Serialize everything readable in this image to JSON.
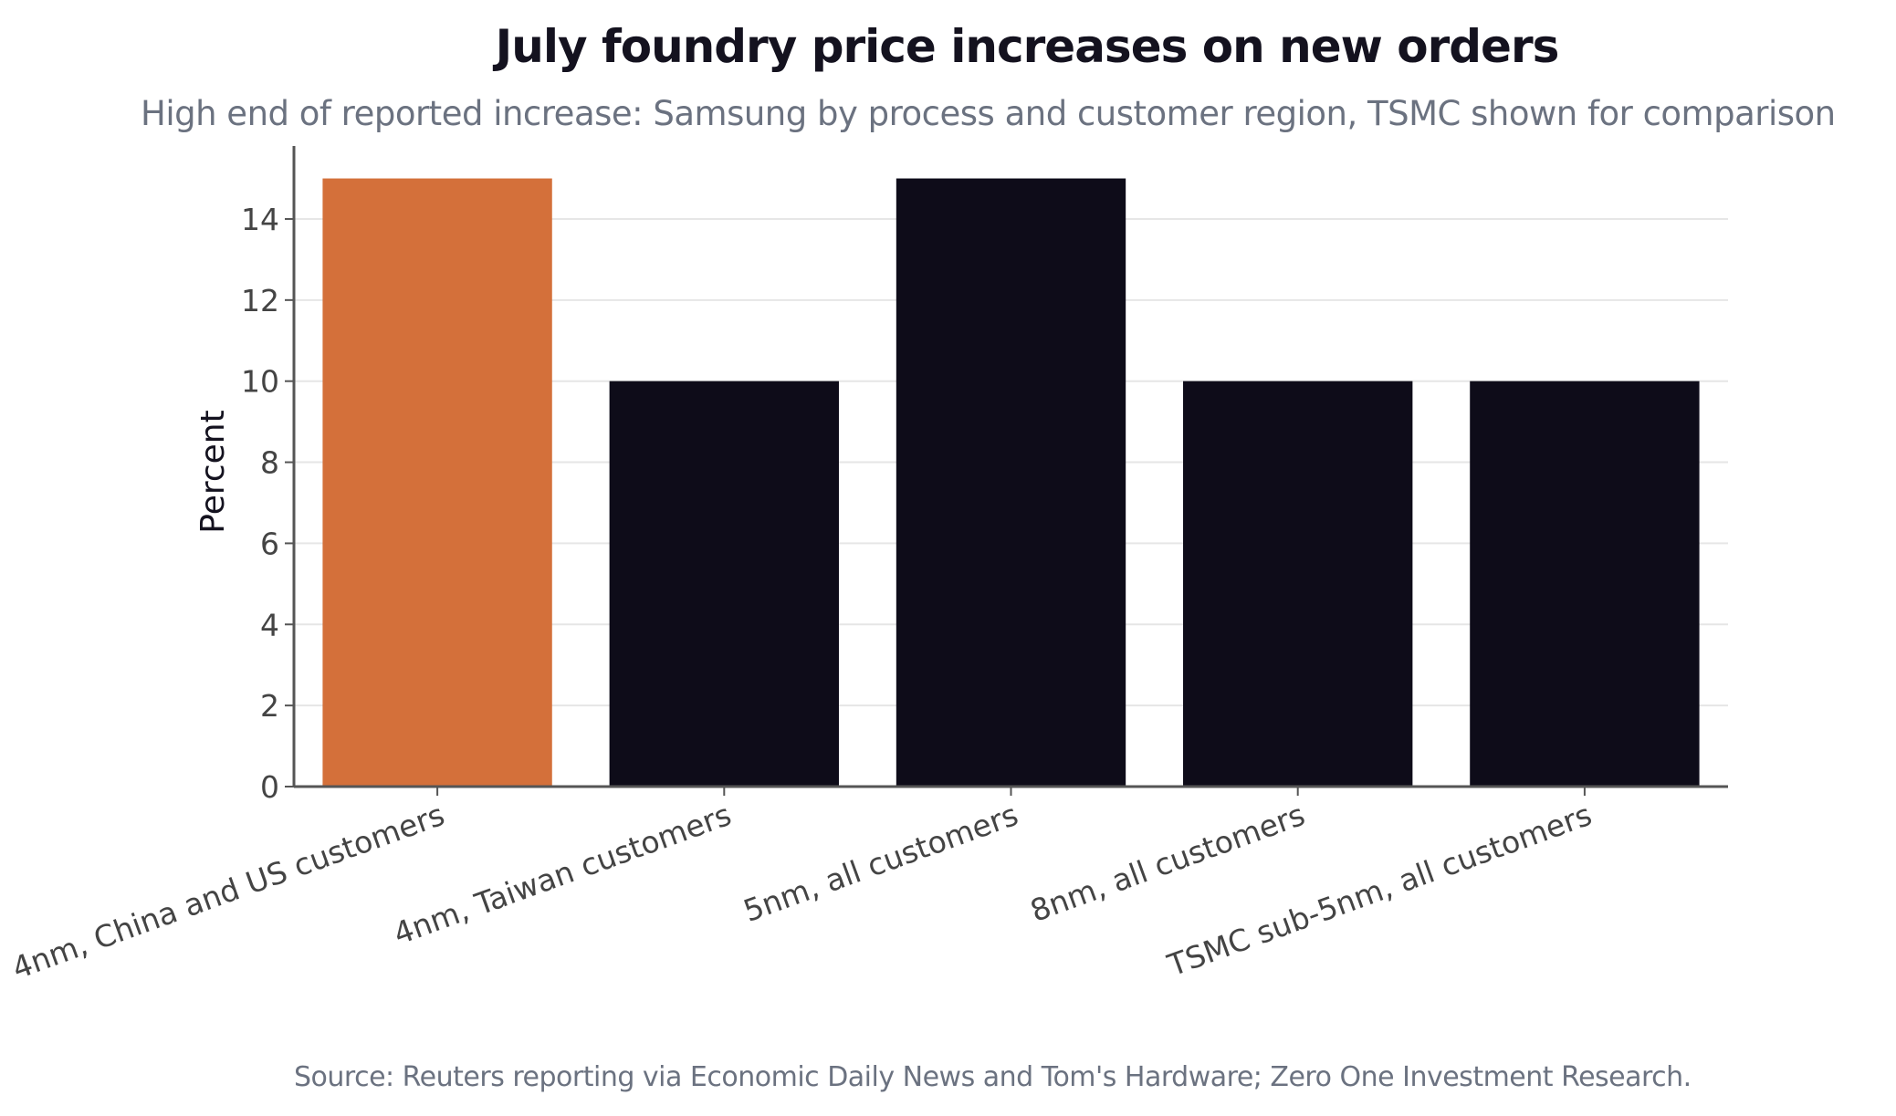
{
  "chart_data": {
    "type": "bar",
    "title": "July foundry price increases on new orders",
    "subtitle": "High end of reported increase: Samsung by process and customer region, TSMC shown for comparison",
    "xlabel": "",
    "ylabel": "Percent",
    "categories": [
      "4nm, China and US customers",
      "4nm, Taiwan customers",
      "5nm, all customers",
      "8nm, all customers",
      "TSMC sub-5nm, all customers"
    ],
    "values": [
      15,
      10,
      15,
      10,
      10
    ],
    "bar_colors": [
      "#d4703a",
      "#0e0c19",
      "#0e0c19",
      "#0e0c19",
      "#0e0c19"
    ],
    "ylim": [
      0,
      15.8
    ],
    "yticks": [
      0,
      2,
      4,
      6,
      8,
      10,
      12,
      14
    ],
    "grid": true,
    "legend": "none",
    "source": "Source: Reuters reporting via Economic Daily News and Tom's Hardware; Zero One Investment Research."
  },
  "colors": {
    "gridline": "#e6e6e6",
    "axis": "#555555",
    "tick_text": "#444444",
    "label_text": "#14121f"
  }
}
